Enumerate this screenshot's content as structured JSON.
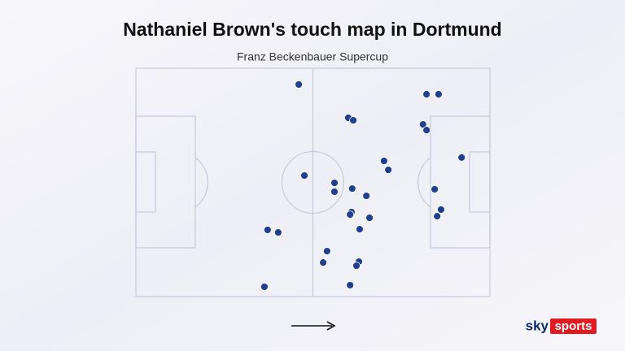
{
  "chart_data": {
    "type": "scatter",
    "title": "Nathaniel Brown's touch map in Dortmund",
    "subtitle": "Franz Beckenbauer Supercup",
    "color": "#1f3f8f",
    "xlim": [
      0,
      100
    ],
    "ylim": [
      0,
      100
    ],
    "x": [
      46.0,
      82.1,
      85.5,
      60.0,
      61.4,
      81.1,
      82.1,
      92.0,
      70.1,
      71.3,
      47.6,
      56.1,
      61.1,
      56.1,
      84.4,
      65.1,
      86.2,
      85.1,
      60.9,
      60.5,
      66.0,
      63.2,
      37.2,
      40.2,
      54.0,
      52.9,
      63.0,
      62.3,
      60.5,
      36.3
    ],
    "values": [
      92.9,
      88.6,
      88.6,
      78.3,
      77.2,
      75.4,
      72.9,
      60.9,
      59.4,
      55.5,
      53.0,
      49.8,
      47.3,
      45.9,
      47.0,
      44.1,
      38.1,
      35.2,
      37.0,
      35.9,
      34.5,
      29.5,
      29.2,
      28.1,
      19.9,
      14.9,
      15.3,
      13.5,
      5.0,
      4.3
    ]
  },
  "logo": {
    "brand": "sky",
    "product": "sports"
  }
}
